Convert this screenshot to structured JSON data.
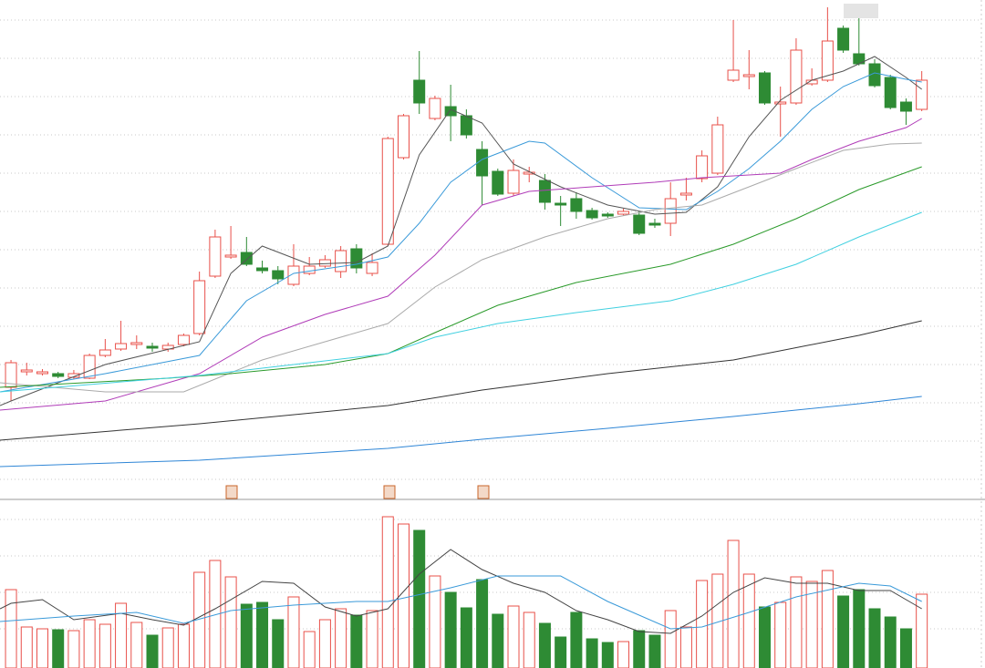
{
  "chart_data": [
    {
      "type": "candlestick",
      "x": [
        0,
        1,
        2,
        3,
        4,
        5,
        6,
        7,
        8,
        9,
        10,
        11,
        12,
        13,
        14,
        15,
        16,
        17,
        18,
        19,
        20,
        21,
        22,
        23,
        24,
        25,
        26,
        27,
        28,
        29,
        30,
        31,
        32,
        33,
        34,
        35,
        36,
        37,
        38,
        39,
        40,
        41,
        42,
        43,
        44,
        45,
        46,
        47,
        48,
        49,
        50,
        51,
        52,
        53,
        54,
        55,
        56,
        57,
        58
      ],
      "open": [
        123,
        140,
        138,
        138,
        134,
        133,
        158,
        165,
        170,
        168,
        165,
        170,
        182,
        245,
        266,
        271,
        254,
        251,
        236,
        248,
        256,
        250,
        275,
        248,
        280,
        375,
        460,
        418,
        431,
        421,
        384,
        360,
        336,
        357,
        350,
        325,
        330,
        317,
        313,
        313,
        312,
        303,
        303,
        334,
        352,
        358,
        460,
        464,
        468,
        434,
        435,
        456,
        460,
        517,
        489,
        478,
        463,
        436,
        428
      ],
      "high": [
        153,
        150,
        143,
        140,
        142,
        160,
        176,
        196,
        180,
        172,
        172,
        182,
        250,
        296,
        300,
        288,
        262,
        256,
        280,
        266,
        268,
        278,
        280,
        270,
        398,
        423,
        492,
        443,
        455,
        428,
        393,
        363,
        373,
        365,
        357,
        333,
        337,
        320,
        315,
        319,
        316,
        308,
        348,
        353,
        383,
        420,
        526,
        493,
        470,
        453,
        506,
        473,
        540,
        520,
        528,
        483,
        466,
        440,
        470
      ],
      "low": [
        108,
        136,
        136,
        133,
        132,
        132,
        156,
        163,
        165,
        162,
        162,
        168,
        180,
        243,
        264,
        256,
        248,
        236,
        234,
        246,
        254,
        243,
        248,
        245,
        278,
        373,
        423,
        416,
        393,
        396,
        323,
        333,
        333,
        348,
        318,
        300,
        308,
        307,
        309,
        311,
        290,
        298,
        289,
        328,
        348,
        356,
        458,
        450,
        433,
        398,
        433,
        454,
        458,
        490,
        476,
        452,
        428,
        411,
        426
      ],
      "close": [
        150,
        142,
        140,
        135,
        138,
        158,
        164,
        171,
        172,
        166,
        169,
        180,
        240,
        288,
        268,
        258,
        251,
        242,
        256,
        256,
        263,
        273,
        254,
        260,
        396,
        421,
        435,
        440,
        421,
        400,
        355,
        335,
        361,
        359,
        326,
        323,
        316,
        309,
        311,
        316,
        292,
        301,
        330,
        336,
        377,
        411,
        471,
        466,
        435,
        436,
        493,
        460,
        503,
        493,
        478,
        454,
        430,
        426,
        460
      ],
      "up_color": "#e8504a",
      "down_color": "#2e8b34",
      "xlim": [
        -0.7,
        58.6
      ],
      "ylim": [
        0,
        548
      ],
      "yticks": [
        22,
        64,
        106,
        148,
        190,
        232,
        274,
        316,
        358,
        400,
        442,
        484,
        526
      ],
      "grid": true,
      "series": [
        {
          "color": "#555555",
          "x": [
            -0.7,
            0,
            6,
            12,
            14,
            16,
            19,
            22,
            24,
            26,
            28,
            30,
            32,
            35,
            38,
            41,
            43,
            45,
            47,
            49,
            51,
            53,
            55,
            57,
            58
          ],
          "values": [
            103,
            108,
            148,
            173,
            248,
            278,
            258,
            260,
            278,
            378,
            428,
            413,
            368,
            343,
            323,
            313,
            315,
            343,
            398,
            438,
            460,
            470,
            486,
            463,
            450
          ]
        },
        {
          "color": "#3a9ad9",
          "x": [
            -0.7,
            6,
            12,
            15,
            18,
            22,
            24,
            26,
            28,
            30,
            33,
            34,
            37,
            40,
            43,
            45,
            47,
            49,
            51,
            53,
            55,
            57,
            58
          ],
          "values": [
            118,
            138,
            158,
            218,
            248,
            258,
            266,
            303,
            348,
            373,
            393,
            391,
            353,
            320,
            318,
            338,
            363,
            393,
            428,
            453,
            468,
            461,
            458
          ]
        },
        {
          "color": "#b03cb8",
          "x": [
            -0.7,
            6,
            12,
            16,
            20,
            24,
            27,
            30,
            33,
            37,
            41,
            44,
            47,
            49,
            51,
            54,
            57,
            58
          ],
          "values": [
            98,
            108,
            138,
            178,
            203,
            223,
            268,
            323,
            338,
            343,
            348,
            353,
            356,
            358,
            373,
            393,
            408,
            418
          ]
        },
        {
          "color": "#aaaaaa",
          "x": [
            -0.7,
            6,
            11,
            16,
            20,
            24,
            27,
            30,
            34,
            38,
            41,
            44,
            47,
            50,
            53,
            56,
            58
          ],
          "values": [
            128,
            118,
            118,
            153,
            173,
            193,
            233,
            263,
            288,
            308,
            318,
            323,
            343,
            363,
            383,
            390,
            391
          ]
        },
        {
          "color": "#2a9a2a",
          "x": [
            -0.7,
            10,
            14,
            20,
            24,
            27,
            31,
            36,
            42,
            46,
            50,
            54,
            58
          ],
          "values": [
            123,
            133,
            138,
            148,
            160,
            183,
            213,
            238,
            258,
            280,
            308,
            340,
            365
          ]
        },
        {
          "color": "#40d0e0",
          "x": [
            -0.7,
            12,
            18,
            24,
            27,
            31,
            36,
            42,
            46,
            50,
            54,
            58
          ],
          "values": [
            118,
            136,
            148,
            160,
            178,
            193,
            205,
            218,
            236,
            258,
            288,
            315
          ]
        },
        {
          "color": "#333333",
          "x": [
            -0.7,
            12,
            24,
            30,
            38,
            46,
            54,
            58
          ],
          "values": [
            65,
            83,
            103,
            120,
            138,
            153,
            180,
            196
          ]
        },
        {
          "color": "#2f86d6",
          "x": [
            -0.7,
            12,
            24,
            30,
            38,
            46,
            54,
            58
          ],
          "values": [
            36,
            43,
            56,
            66,
            78,
            91,
            105,
            113
          ]
        }
      ]
    },
    {
      "type": "bar",
      "x": [
        0,
        1,
        2,
        3,
        4,
        5,
        6,
        7,
        8,
        9,
        10,
        11,
        12,
        13,
        14,
        15,
        16,
        17,
        18,
        19,
        20,
        21,
        22,
        23,
        24,
        25,
        26,
        27,
        28,
        29,
        30,
        31,
        32,
        33,
        34,
        35,
        36,
        37,
        38,
        39,
        40,
        41,
        42,
        43,
        44,
        45,
        46,
        47,
        48,
        49,
        50,
        51,
        52,
        53,
        54,
        55,
        56,
        57,
        58
      ],
      "values": [
        86,
        45,
        43,
        42,
        41,
        53,
        48,
        71,
        50,
        36,
        44,
        48,
        105,
        118,
        100,
        70,
        72,
        53,
        78,
        40,
        53,
        65,
        58,
        63,
        166,
        158,
        151,
        101,
        83,
        66,
        97,
        59,
        68,
        61,
        49,
        34,
        61,
        32,
        28,
        29,
        41,
        36,
        63,
        45,
        96,
        103,
        140,
        103,
        67,
        72,
        100,
        95,
        107,
        79,
        86,
        65,
        56,
        43,
        81
      ],
      "xlim": [
        -0.7,
        58.6
      ],
      "ylim": [
        0,
        185
      ],
      "yticks": [
        43,
        83,
        123,
        163
      ],
      "grid": true,
      "series": [
        {
          "color": "#444444",
          "x": [
            -0.7,
            0,
            2,
            4,
            7,
            9,
            11,
            13,
            16,
            18,
            20,
            22,
            24,
            26,
            28,
            30,
            32,
            34,
            36,
            38,
            40,
            42,
            44,
            46,
            48,
            50,
            52,
            54,
            56,
            58
          ],
          "values": [
            65,
            71,
            75,
            53,
            60,
            53,
            47,
            65,
            95,
            93,
            67,
            57,
            65,
            103,
            130,
            108,
            93,
            83,
            63,
            53,
            40,
            38,
            57,
            83,
            99,
            93,
            93,
            85,
            85,
            65
          ]
        },
        {
          "color": "#3a9ad9",
          "x": [
            -0.7,
            4,
            8,
            11,
            14,
            18,
            22,
            24,
            28,
            31,
            35,
            38,
            42,
            44,
            47,
            50,
            54,
            56,
            58
          ],
          "values": [
            51,
            57,
            61,
            49,
            63,
            69,
            73,
            73,
            88,
            101,
            101,
            73,
            43,
            45,
            61,
            78,
            93,
            90,
            73
          ]
        }
      ]
    }
  ]
}
